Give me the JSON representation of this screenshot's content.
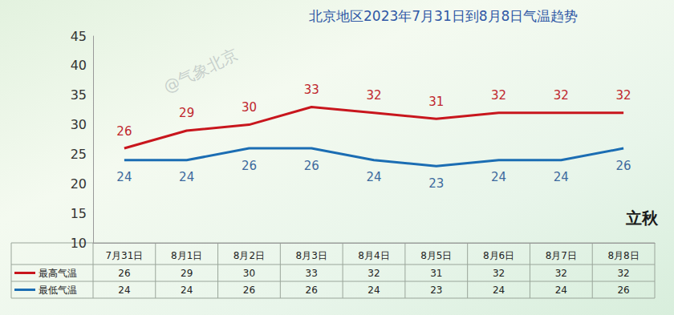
{
  "chart_data": {
    "type": "line",
    "title": "北京地区2023年7月31日到8月8日气温趋势",
    "categories": [
      "7月31日",
      "8月1日",
      "8月2日",
      "8月3日",
      "8月4日",
      "8月5日",
      "8月6日",
      "8月7日",
      "8月8日"
    ],
    "series": [
      {
        "name": "最高气温",
        "color": "#c8161d",
        "values": [
          26,
          29,
          30,
          33,
          32,
          31,
          32,
          32,
          32
        ]
      },
      {
        "name": "最低气温",
        "color": "#1b6db3",
        "values": [
          24,
          24,
          26,
          26,
          24,
          23,
          24,
          24,
          26
        ]
      }
    ],
    "ylim": [
      10,
      45
    ],
    "yticks": [
      10,
      15,
      20,
      25,
      30,
      35,
      40,
      45
    ],
    "grid": false,
    "legend": "bottom",
    "data_labels": true,
    "annotations": [
      "@气象北京",
      "立秋"
    ]
  }
}
